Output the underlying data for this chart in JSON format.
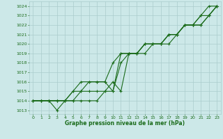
{
  "xlabel": "Graphe pression niveau de la mer (hPa)",
  "x": [
    0,
    1,
    2,
    3,
    4,
    5,
    6,
    7,
    8,
    9,
    10,
    11,
    12,
    13,
    14,
    15,
    16,
    17,
    18,
    19,
    20,
    21,
    22,
    23
  ],
  "series": [
    [
      1014,
      1014,
      1014,
      1013,
      1014,
      1014,
      1014,
      1014,
      1014,
      1015,
      1015,
      1018,
      1019,
      1019,
      1020,
      1020,
      1020,
      1020,
      1021,
      1022,
      1022,
      1023,
      1024,
      1024
    ],
    [
      1014,
      1014,
      1014,
      1014,
      1014,
      1014,
      1015,
      1016,
      1016,
      1016,
      1015,
      1019,
      1019,
      1019,
      1020,
      1020,
      1020,
      1021,
      1021,
      1022,
      1022,
      1023,
      1023,
      1024
    ],
    [
      1014,
      1014,
      1014,
      1014,
      1014,
      1015,
      1016,
      1016,
      1016,
      1016,
      1018,
      1019,
      1019,
      1019,
      1020,
      1020,
      1020,
      1021,
      1021,
      1022,
      1022,
      1022,
      1023,
      1024
    ],
    [
      1014,
      1014,
      1014,
      1014,
      1014,
      1015,
      1015,
      1015,
      1015,
      1015,
      1016,
      1015,
      1019,
      1019,
      1019,
      1020,
      1020,
      1021,
      1021,
      1022,
      1022,
      1022,
      1023,
      1024
    ]
  ],
  "line_color": "#1a6b1a",
  "bg_color": "#cce8e8",
  "grid_color": "#aacccc",
  "text_color": "#1a6b1a",
  "ylim_min": 1012.6,
  "ylim_max": 1024.5,
  "yticks": [
    1013,
    1014,
    1015,
    1016,
    1017,
    1018,
    1019,
    1020,
    1021,
    1022,
    1023,
    1024
  ],
  "xticks": [
    0,
    1,
    2,
    3,
    4,
    5,
    6,
    7,
    8,
    9,
    10,
    11,
    12,
    13,
    14,
    15,
    16,
    17,
    18,
    19,
    20,
    21,
    22,
    23
  ]
}
